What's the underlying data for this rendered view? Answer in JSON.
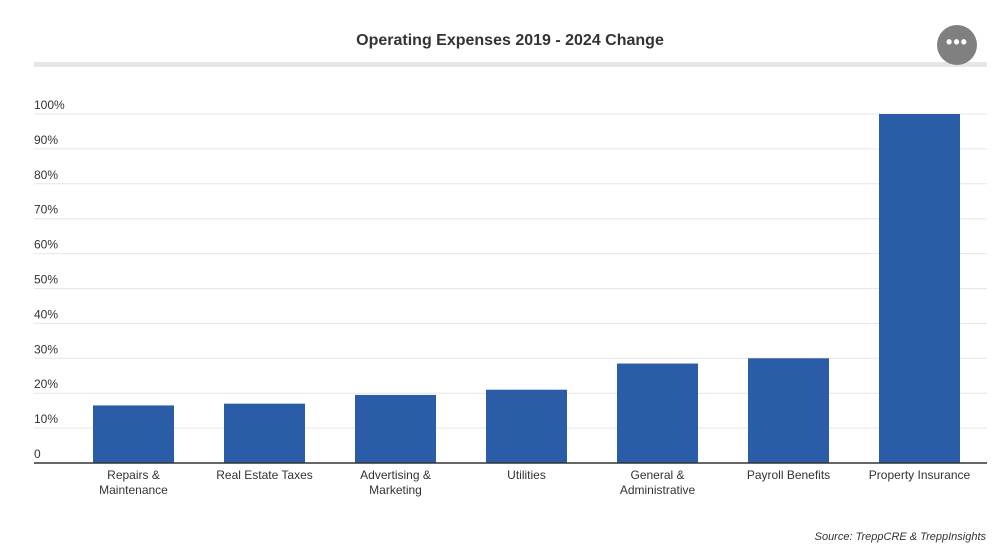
{
  "header": {
    "menu_icon": "ellipsis-icon",
    "menu_label": "•••"
  },
  "footer": {
    "source": "Source: TreppCRE & TreppInsights"
  },
  "colors": {
    "bar": "#2b5ca8",
    "grid": "#e6e6e6",
    "axis": "#333333",
    "title_rule": "#e6e6e6",
    "menu_button": "#808080"
  },
  "chart_data": {
    "type": "bar",
    "title": "Operating Expenses 2019 - 2024 Change",
    "xlabel": "",
    "ylabel": "",
    "categories": [
      [
        "Repairs &",
        "Maintenance"
      ],
      [
        "Real Estate Taxes"
      ],
      [
        "Advertising &",
        "Marketing"
      ],
      [
        "Utilities"
      ],
      [
        "General &",
        "Administrative"
      ],
      [
        "Payroll Benefits"
      ],
      [
        "Property Insurance"
      ]
    ],
    "values": [
      16.5,
      17,
      19.5,
      21,
      28.5,
      30,
      100
    ],
    "ylim": [
      0,
      100
    ],
    "yticks": [
      0,
      10,
      20,
      30,
      40,
      50,
      60,
      70,
      80,
      90,
      100
    ],
    "ytick_labels": [
      "0",
      "10%",
      "20%",
      "30%",
      "40%",
      "50%",
      "60%",
      "70%",
      "80%",
      "90%",
      "100%"
    ],
    "grid": true,
    "legend": "none"
  }
}
